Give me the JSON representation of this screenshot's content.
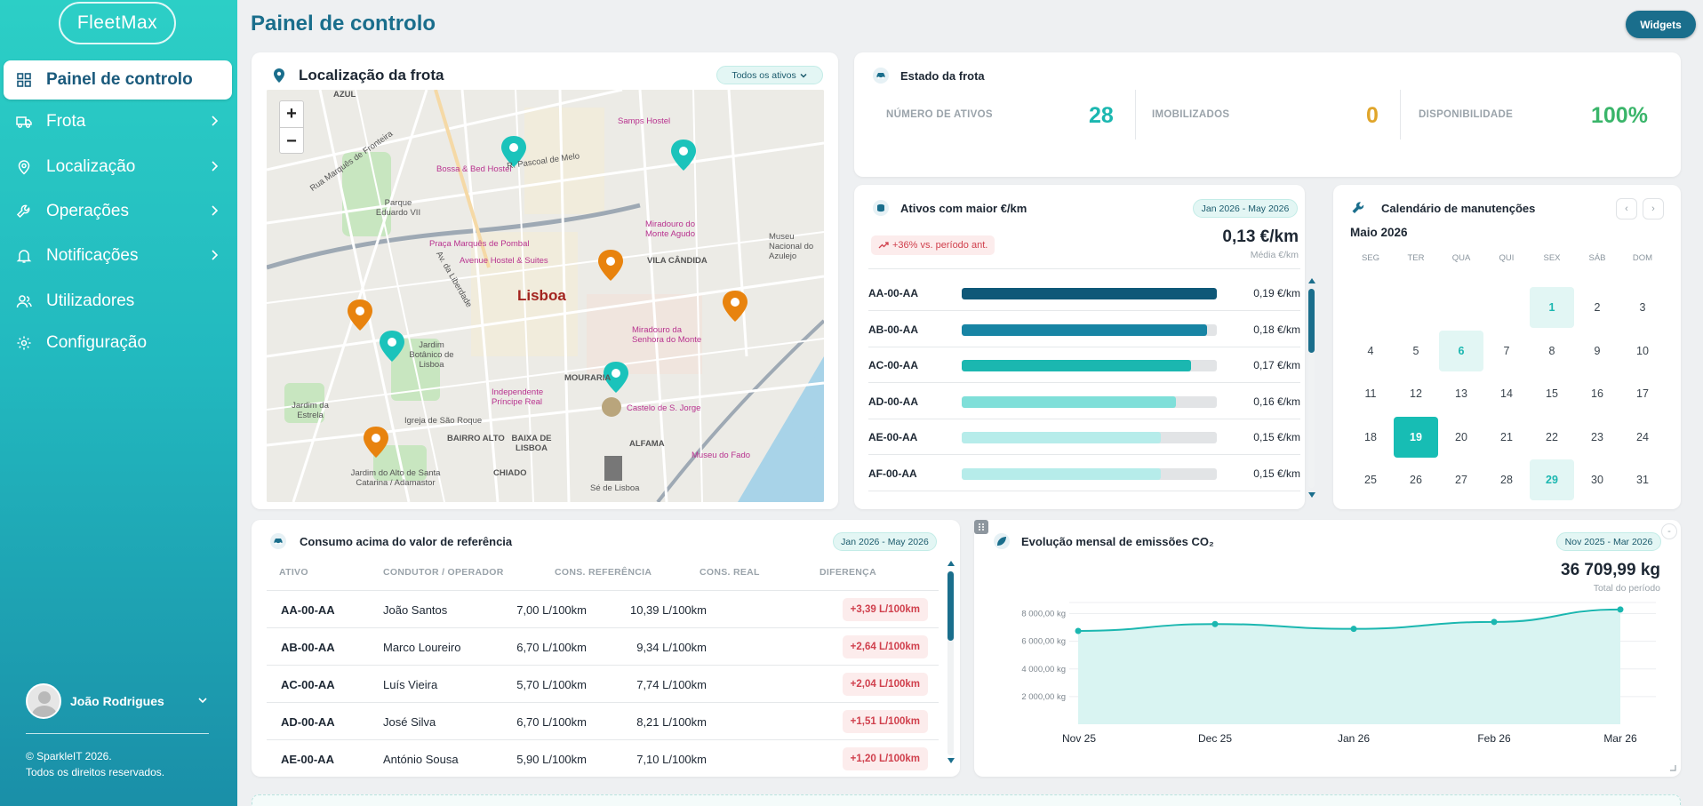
{
  "app": {
    "logo_text": "FleetMax",
    "page_title": "Painel de controlo",
    "widgets_label": "Widgets"
  },
  "sidebar": {
    "items": [
      {
        "label": "Painel de controlo",
        "icon": "grid-icon",
        "active": true
      },
      {
        "label": "Frota",
        "icon": "truck-icon"
      },
      {
        "label": "Localização",
        "icon": "location-pin-icon"
      },
      {
        "label": "Operações",
        "icon": "wrench-icon"
      },
      {
        "label": "Notificações",
        "icon": "bell-icon"
      },
      {
        "label": "Utilizadores",
        "icon": "users-icon"
      },
      {
        "label": "Configuração",
        "icon": "gear-icon"
      }
    ],
    "user_name": "João Rodrigues",
    "copyright_line1": "© SparkleIT 2026.",
    "copyright_line2": "Todos os direitos reservados."
  },
  "map_card": {
    "title": "Localização da frota",
    "filter": "Todos os ativos",
    "city_label": "Lisboa",
    "area_labels": [
      "AZUL",
      "VILA CÂNDIDA",
      "MOURARIA",
      "BAIRRO ALTO",
      "BAIXA DE LISBOA",
      "ALFAMA",
      "CHIADO",
      "Parque Eduardo VII",
      "Jardim Botânico de Lisboa",
      "Jardim da Estrela",
      "Igreja de São Roque",
      "Jardim do Alto de Santa Catarina / Adamastor",
      "Sé de Lisboa",
      "Museu Nacional do Azulejo"
    ],
    "poi_labels": [
      "Samps Hostel",
      "Bossa & Bed Hostel",
      "Praça Marquês de Pombal",
      "Avenue Hostel & Suites",
      "Miradouro do Monte Agudo",
      "Miradouro da Senhora do Monte",
      "Independente Príncipe Real",
      "Castelo de S. Jorge",
      "Museu do Fado"
    ],
    "street_labels": [
      "R. Pascoal de Melo",
      "Rua Marquês de Fronteira",
      "Av. da Liberdade"
    ]
  },
  "fleet_state": {
    "title": "Estado da frota",
    "kpis": [
      {
        "label": "NÚMERO DE ATIVOS",
        "value": "28",
        "color": "#1bb7b0"
      },
      {
        "label": "IMOBILIZADOS",
        "value": "0",
        "color": "#e0a52a"
      },
      {
        "label": "DISPONIBILIDADE",
        "value": "100%",
        "color": "#3ab56a"
      }
    ]
  },
  "cost_card": {
    "title": "Ativos com maior €/km",
    "period": "Jan 2026 - May 2026",
    "trend": "+36% vs. período ant.",
    "avg_value": "0,13 €/km",
    "avg_label": "Média €/km",
    "rows": [
      {
        "asset": "AA-00-AA",
        "value": "0,19 €/km",
        "ratio": 1.0,
        "color": "#0f5878"
      },
      {
        "asset": "AB-00-AA",
        "value": "0,18 €/km",
        "ratio": 0.96,
        "color": "#1784a4"
      },
      {
        "asset": "AC-00-AA",
        "value": "0,17 €/km",
        "ratio": 0.9,
        "color": "#1bb7b0"
      },
      {
        "asset": "AD-00-AA",
        "value": "0,16 €/km",
        "ratio": 0.84,
        "color": "#7fdfd9"
      },
      {
        "asset": "AE-00-AA",
        "value": "0,15 €/km",
        "ratio": 0.78,
        "color": "#b6ecea"
      },
      {
        "asset": "AF-00-AA",
        "value": "0,15 €/km",
        "ratio": 0.78,
        "color": "#b6ecea"
      }
    ]
  },
  "calendar": {
    "title": "Calendário de manutenções",
    "month": "Maio 2026",
    "prev": "‹",
    "next": "›",
    "weekdays": [
      "SEG",
      "TER",
      "QUA",
      "QUI",
      "SEX",
      "SÁB",
      "DOM"
    ],
    "start_offset": 4,
    "days_in_month": 31,
    "highlighted": [
      1,
      6,
      29
    ],
    "today": 19
  },
  "consumption": {
    "title": "Consumo acima do valor de referência",
    "period": "Jan 2026 - May 2026",
    "columns": [
      "ATIVO",
      "CONDUTOR / OPERADOR",
      "CONS. REFERÊNCIA",
      "CONS. REAL",
      "DIFERENÇA"
    ],
    "rows": [
      {
        "asset": "AA-00-AA",
        "driver": "João Santos",
        "ref": "7,00 L/100km",
        "real": "10,39 L/100km",
        "diff": "+3,39 L/100km"
      },
      {
        "asset": "AB-00-AA",
        "driver": "Marco Loureiro",
        "ref": "6,70 L/100km",
        "real": "9,34 L/100km",
        "diff": "+2,64 L/100km"
      },
      {
        "asset": "AC-00-AA",
        "driver": "Luís Vieira",
        "ref": "5,70 L/100km",
        "real": "7,74 L/100km",
        "diff": "+2,04 L/100km"
      },
      {
        "asset": "AD-00-AA",
        "driver": "José Silva",
        "ref": "6,70 L/100km",
        "real": "8,21 L/100km",
        "diff": "+1,51 L/100km"
      },
      {
        "asset": "AE-00-AA",
        "driver": "António Sousa",
        "ref": "5,90 L/100km",
        "real": "7,10 L/100km",
        "diff": "+1,20 L/100km"
      }
    ]
  },
  "emissions": {
    "title": "Evolução mensal de emissões CO₂",
    "period": "Nov 2025 - Mar 2026",
    "total": "36 709,99 kg",
    "total_label": "Total do período"
  },
  "chart_data": {
    "type": "area",
    "title": "Evolução mensal de emissões CO₂",
    "categories": [
      "Nov 25",
      "Dec 25",
      "Jan 26",
      "Feb 26",
      "Mar 26"
    ],
    "values": [
      6750,
      7250,
      6900,
      7400,
      8300
    ],
    "yticks": [
      "8 000,00 kg",
      "6 000,00 kg",
      "4 000,00 kg",
      "2 000,00 kg"
    ],
    "ytick_values": [
      8000,
      6000,
      4000,
      2000
    ],
    "ylim": [
      0,
      9000
    ],
    "grid": true,
    "color": "#1bb7b0"
  },
  "colors": {
    "accent": "#1bb7b0",
    "primary": "#1a6e8c",
    "danger": "#d0404d"
  }
}
